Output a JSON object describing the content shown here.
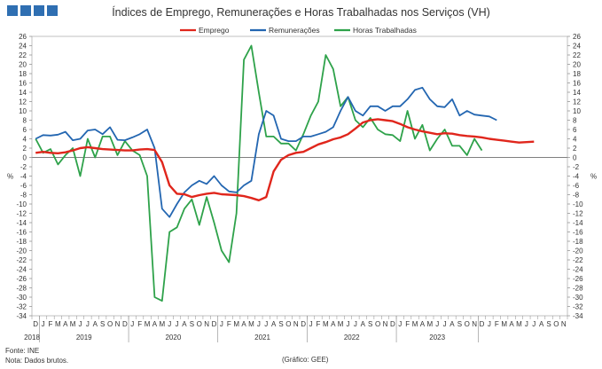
{
  "header": {
    "title": "Índices de Emprego, Remunerações e Horas Trabalhadas nos Serviços (VH)"
  },
  "footer": {
    "source": "Fonte: INE",
    "note": "Nota: Dados brutos.",
    "credit": "(Gráfico: GEE)"
  },
  "chart_data": {
    "type": "line",
    "title": "Índices de Emprego, Remunerações e Horas Trabalhadas nos Serviços (VH)",
    "ylabel_left": "%",
    "ylabel_right": "%",
    "ylim": [
      -34,
      26
    ],
    "yticks": [
      -34,
      -32,
      -30,
      -28,
      -26,
      -24,
      -22,
      -20,
      -18,
      -16,
      -14,
      -12,
      -10,
      -8,
      -6,
      -4,
      -2,
      0,
      2,
      4,
      6,
      8,
      10,
      12,
      14,
      16,
      18,
      20,
      22,
      24,
      26
    ],
    "legend_position": "top-center",
    "month_labels": [
      "D",
      "J",
      "F",
      "M",
      "A",
      "M",
      "J",
      "J",
      "A",
      "S",
      "O",
      "N",
      "D",
      "J",
      "F",
      "M",
      "A",
      "M",
      "J",
      "J",
      "A",
      "S",
      "O",
      "N",
      "D",
      "J",
      "F",
      "M",
      "A",
      "M",
      "J",
      "J",
      "A",
      "S",
      "O",
      "N",
      "D",
      "J",
      "F",
      "M",
      "A",
      "M",
      "J",
      "J",
      "A",
      "S",
      "O",
      "N",
      "D",
      "J",
      "F",
      "M",
      "A",
      "M",
      "J",
      "J",
      "A",
      "S",
      "O",
      "N",
      "D",
      "J",
      "F",
      "M",
      "A",
      "M",
      "J",
      "J",
      "A",
      "S",
      "O",
      "N"
    ],
    "year_labels": [
      {
        "label": "2018",
        "start": 0,
        "end": 0
      },
      {
        "label": "2019",
        "start": 1,
        "end": 12
      },
      {
        "label": "2020",
        "start": 13,
        "end": 24
      },
      {
        "label": "2021",
        "start": 25,
        "end": 36
      },
      {
        "label": "2022",
        "start": 37,
        "end": 48
      },
      {
        "label": "2023",
        "start": 49,
        "end": 59
      }
    ],
    "series": [
      {
        "name": "Emprego",
        "color": "#e0261c",
        "values": [
          1.0,
          1.2,
          1.0,
          0.9,
          1.1,
          1.5,
          2.0,
          2.2,
          2.0,
          1.8,
          1.7,
          1.6,
          1.5,
          1.5,
          1.7,
          1.8,
          1.6,
          -1.0,
          -6.0,
          -7.8,
          -7.9,
          -8.5,
          -8.1,
          -7.8,
          -7.6,
          -7.9,
          -8.0,
          -8.1,
          -8.3,
          -8.7,
          -9.2,
          -8.5,
          -3.0,
          -0.5,
          0.5,
          1.0,
          1.2,
          2.0,
          2.8,
          3.3,
          3.9,
          4.3,
          5.0,
          6.2,
          7.5,
          8.0,
          8.2,
          8.0,
          7.8,
          7.2,
          6.5,
          6.0,
          5.6,
          5.3,
          5.0,
          5.2,
          5.1,
          4.8,
          4.6,
          4.5,
          4.3,
          4.0,
          3.8,
          3.6,
          3.4,
          3.2,
          3.3,
          3.4
        ]
      },
      {
        "name": "Remunerações",
        "color": "#2366b1",
        "values": [
          4.0,
          4.8,
          4.7,
          4.9,
          5.5,
          3.7,
          4.0,
          5.8,
          6.0,
          5.0,
          6.5,
          3.8,
          3.7,
          4.3,
          5.0,
          6.0,
          2.0,
          -11.0,
          -12.8,
          -10.0,
          -7.5,
          -6.0,
          -5.0,
          -5.7,
          -4.0,
          -6.0,
          -7.3,
          -7.5,
          -6.0,
          -5.0,
          5.0,
          10.0,
          9.0,
          4.0,
          3.5,
          3.5,
          4.5,
          4.5,
          5.0,
          5.5,
          6.5,
          10.0,
          13.0,
          10.0,
          9.0,
          11.0,
          11.0,
          10.0,
          11.0,
          11.0,
          12.5,
          14.5,
          15.0,
          12.5,
          11.0,
          10.8,
          12.5,
          9.0,
          10.0,
          9.2,
          9.0,
          8.8,
          8.0
        ]
      },
      {
        "name": "Horas Trabalhadas",
        "color": "#2ea24a",
        "values": [
          4.0,
          1.0,
          1.8,
          -1.5,
          0.5,
          2.0,
          -4.0,
          4.0,
          0.0,
          4.5,
          4.5,
          0.5,
          3.5,
          1.5,
          0.5,
          -4.0,
          -30.0,
          -30.8,
          -16.0,
          -15.0,
          -11.0,
          -9.0,
          -14.5,
          -8.5,
          -14.0,
          -20.0,
          -22.5,
          -12.0,
          21.0,
          24.0,
          14.0,
          4.5,
          4.5,
          3.0,
          3.0,
          1.5,
          5.0,
          9.0,
          12.0,
          22.0,
          19.0,
          11.0,
          13.0,
          8.0,
          6.5,
          8.5,
          6.0,
          5.0,
          4.8,
          3.5,
          10.0,
          4.0,
          7.0,
          1.5,
          4.0,
          6.0,
          2.5,
          2.5,
          0.5,
          4.0,
          1.5
        ]
      }
    ]
  }
}
